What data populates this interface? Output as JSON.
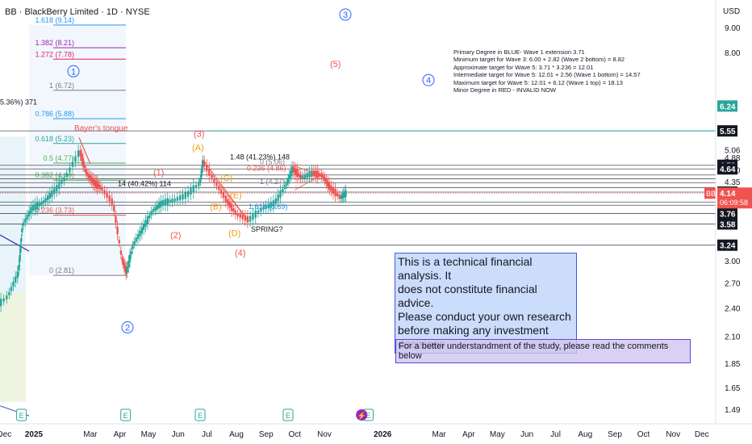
{
  "header": {
    "title": "BB · BlackBerry Limited · 1D · NYSE",
    "currency": "USD"
  },
  "colors": {
    "up": "#26a69a",
    "down": "#ef5350",
    "blue_wave": "#2962ff",
    "red_wave": "#ef5350",
    "orange_wave": "#f59c1a",
    "fib": "#2196f3"
  },
  "chart_data": {
    "type": "candlestick",
    "symbol": "BB",
    "y_scale": "log",
    "ylim": [
      1.4,
      10.5
    ],
    "current_price": 4.14,
    "countdown": "06:09:58",
    "y_ticks": [
      9.0,
      8.0,
      5.06,
      4.88,
      4.6,
      4.35,
      3.0,
      2.7,
      2.4,
      2.1,
      1.85,
      1.65,
      1.49
    ],
    "price_labels": [
      {
        "value": 6.24,
        "text": "6.24",
        "color": "#26a69a"
      },
      {
        "value": 5.55,
        "text": "5.55",
        "color": "#131722"
      },
      {
        "value": 4.72,
        "text": "4.72",
        "color": "#131722"
      },
      {
        "value": 4.64,
        "text": "4.64",
        "color": "#131722"
      },
      {
        "value": 4.16,
        "text": "4.16",
        "color": "#131722"
      },
      {
        "value": 3.91,
        "text": "3.91",
        "color": "#131722"
      },
      {
        "value": 3.76,
        "text": "3.76",
        "color": "#131722"
      },
      {
        "value": 3.58,
        "text": "3.58",
        "color": "#131722"
      },
      {
        "value": 3.24,
        "text": "3.24",
        "color": "#131722"
      }
    ],
    "x_labels": [
      "Dec",
      "2025",
      "Mar",
      "Apr",
      "May",
      "Jun",
      "Jul",
      "Aug",
      "Sep",
      "Oct",
      "Nov",
      "2026",
      "Mar",
      "Apr",
      "May",
      "Jun",
      "Jul",
      "Aug",
      "Sep",
      "Oct",
      "Nov",
      "Dec"
    ],
    "x_label_dates": [
      "2024-12-01",
      "2025-01-01",
      "2025-03-01",
      "2025-04-01",
      "2025-05-01",
      "2025-06-01",
      "2025-07-01",
      "2025-08-01",
      "2025-09-01",
      "2025-10-01",
      "2025-11-01",
      "2026-01-01",
      "2026-03-01",
      "2026-04-01",
      "2026-05-01",
      "2026-06-01",
      "2026-07-01",
      "2026-08-01",
      "2026-09-01",
      "2026-10-01",
      "2026-11-01",
      "2026-12-01"
    ],
    "price_path": [
      [
        "2024-11-20",
        2.4
      ],
      [
        "2024-12-05",
        2.55
      ],
      [
        "2024-12-16",
        2.85
      ],
      [
        "2024-12-20",
        3.55
      ],
      [
        "2024-12-30",
        3.85
      ],
      [
        "2025-01-10",
        3.95
      ],
      [
        "2025-01-21",
        4.15
      ],
      [
        "2025-02-03",
        4.45
      ],
      [
        "2025-02-18",
        5.05
      ],
      [
        "2025-02-25",
        4.55
      ],
      [
        "2025-03-05",
        4.35
      ],
      [
        "2025-03-12",
        4.25
      ],
      [
        "2025-03-25",
        3.95
      ],
      [
        "2025-04-03",
        3.05
      ],
      [
        "2025-04-08",
        2.85
      ],
      [
        "2025-04-15",
        3.25
      ],
      [
        "2025-04-25",
        3.5
      ],
      [
        "2025-05-05",
        3.8
      ],
      [
        "2025-05-15",
        3.95
      ],
      [
        "2025-05-27",
        4.0
      ],
      [
        "2025-06-10",
        4.1
      ],
      [
        "2025-06-24",
        4.35
      ],
      [
        "2025-06-27",
        4.8
      ],
      [
        "2025-07-10",
        4.35
      ],
      [
        "2025-07-22",
        4.0
      ],
      [
        "2025-08-01",
        3.75
      ],
      [
        "2025-08-14",
        3.65
      ],
      [
        "2025-08-28",
        3.85
      ],
      [
        "2025-09-10",
        3.95
      ],
      [
        "2025-09-22",
        4.3
      ],
      [
        "2025-09-29",
        4.65
      ],
      [
        "2025-10-08",
        4.45
      ],
      [
        "2025-10-20",
        4.55
      ],
      [
        "2025-10-30",
        4.5
      ],
      [
        "2025-11-07",
        4.25
      ],
      [
        "2025-11-18",
        4.05
      ],
      [
        "2025-11-24",
        4.14
      ]
    ],
    "horizontal_levels": [
      5.55,
      4.72,
      4.64,
      4.51,
      4.43,
      4.35,
      4.25,
      4.16,
      3.97,
      3.91,
      3.76,
      3.58,
      3.24
    ],
    "fib_labels": [
      {
        "text": "1.618 (9.14)",
        "value": 9.14,
        "color": "#2196f3"
      },
      {
        "text": "1.382 (8.21)",
        "value": 8.21,
        "color": "#9c27b0"
      },
      {
        "text": "1.272 (7.78)",
        "value": 7.78,
        "color": "#e91e63"
      },
      {
        "text": "1 (6.72)",
        "value": 6.72,
        "color": "#787b86"
      },
      {
        "text": "0.786 (5.88)",
        "value": 5.88,
        "color": "#2196f3"
      },
      {
        "text": "0.618 (5.23)",
        "value": 5.23,
        "color": "#26a69a"
      },
      {
        "text": "0.5 (4.77)",
        "value": 4.77,
        "color": "#4caf50"
      },
      {
        "text": "0.382 (4.40)",
        "value": 4.4,
        "color": "#4caf50"
      },
      {
        "text": "0.236 (3.73)",
        "value": 3.73,
        "color": "#ef5350"
      },
      {
        "text": "0 (2.81)",
        "value": 2.81,
        "color": "#787b86"
      }
    ],
    "annotations": {
      "left_partial": "5.36%) 371",
      "bayers_tongue": "Bayer's tongue",
      "pct_1_48": "1.48 (41.23%) 148",
      "pct_14": "14 (40.42%) 114",
      "fib_0_right": "0 (5.06)",
      "fib_0236_right": "0.236 (4.86)",
      "fib_1_right": "1 (4.27)",
      "fib_1618_mid": "1.618 (3.69)",
      "spring": "SPRING?"
    },
    "wave_labels": {
      "w1": "1",
      "w2": "2",
      "w3": "3",
      "w4": "4",
      "r1": "(1)",
      "r2": "(2)",
      "r3": "(3)",
      "r4": "(4)",
      "r5": "(5)",
      "oA": "(A)",
      "oB": "(B)",
      "oC": "(C)",
      "oD": "(D)",
      "oE": "(E)"
    }
  },
  "notes": {
    "analysis": [
      "Primary Degree in BLUE- Wave 1 extension 3.71",
      "Minimum target for Wave 3: 6.00 + 2.82 (Wave 2 bottom) = 8.82",
      "Approximate target for Wave 5: 3.71 * 3.236 = 12.01",
      "Intermediate target for Wave 5: 12.01 + 2.56 (Wave 1 bottom) = 14.57",
      "Maximum target for Wave 5: 12.01 + 6.12 (Wave 1 top) = 18.13",
      "",
      "Minor Degree in RED - INVALID NOW"
    ],
    "disclaimer": [
      "This is a technical financial analysis. It",
      "does not constitute financial advice.",
      "Please conduct your own research",
      "before making any investment decisions"
    ],
    "comments": "For a better understandment of the study, please read the comments below"
  },
  "events": [
    {
      "date": "2024-12-19",
      "type": "earnings",
      "text": "E"
    },
    {
      "date": "2025-04-07",
      "type": "earnings",
      "text": "E"
    },
    {
      "date": "2025-06-24",
      "type": "earnings",
      "text": "E"
    },
    {
      "date": "2025-09-24",
      "type": "earnings",
      "text": "E"
    },
    {
      "date": "2025-12-17",
      "type": "earnings",
      "text": "E"
    }
  ]
}
